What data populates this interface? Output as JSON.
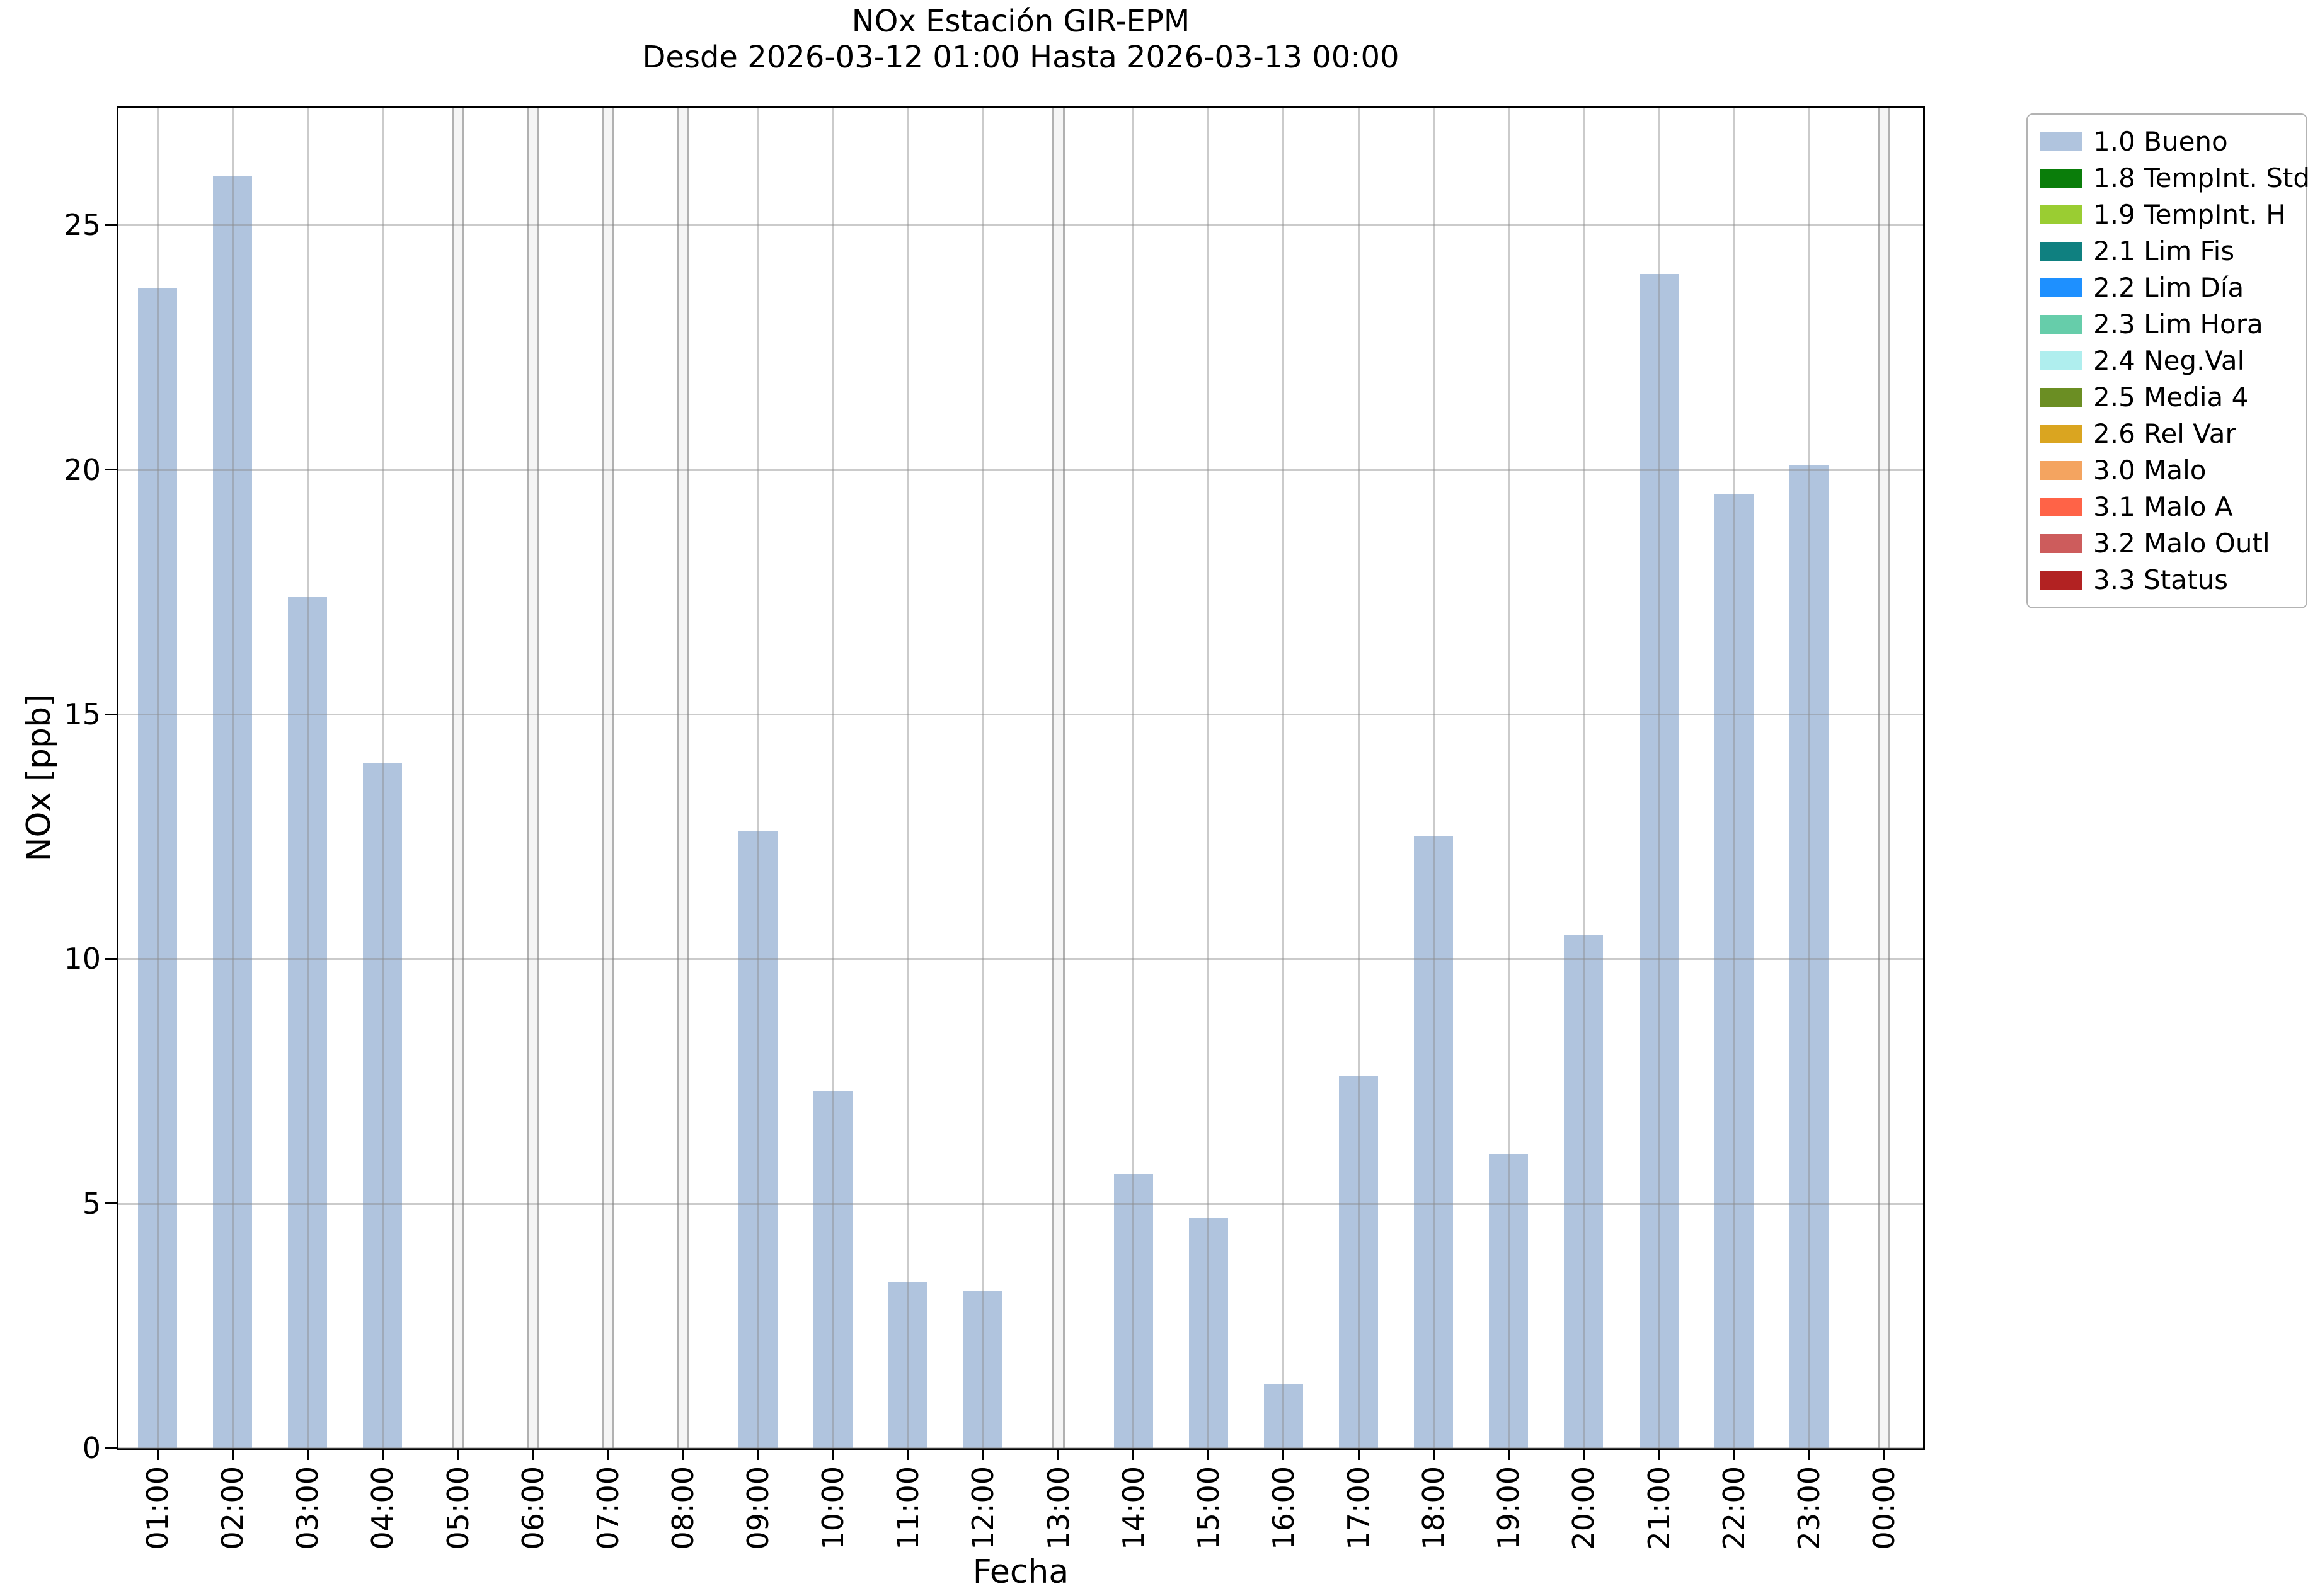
{
  "chart_data": {
    "type": "bar",
    "title": "NOx Estación GIR-EPM",
    "subtitle": "Desde 2026-03-12 01:00 Hasta 2026-03-13 00:00",
    "xlabel": "Fecha",
    "ylabel": "NOx [ppb]",
    "ylim": [
      0,
      27.4
    ],
    "yticks": [
      0,
      5,
      10,
      15,
      20,
      25
    ],
    "grid": true,
    "bar_color": "#b0c4de",
    "legend_position": "upper right outside",
    "categories": [
      "01:00",
      "02:00",
      "03:00",
      "04:00",
      "05:00",
      "06:00",
      "07:00",
      "08:00",
      "09:00",
      "10:00",
      "11:00",
      "12:00",
      "13:00",
      "14:00",
      "15:00",
      "16:00",
      "17:00",
      "18:00",
      "19:00",
      "20:00",
      "21:00",
      "22:00",
      "23:00",
      "00:00"
    ],
    "values": [
      23.7,
      26.0,
      17.4,
      14.0,
      0,
      0,
      0,
      0,
      12.6,
      7.3,
      3.4,
      3.2,
      0,
      5.6,
      4.7,
      1.3,
      7.6,
      12.5,
      6.0,
      10.5,
      24.0,
      19.5,
      20.1,
      0
    ],
    "legend": [
      {
        "label": "1.0 Bueno",
        "color": "#b0c4de"
      },
      {
        "label": "1.8 TempInt. Std",
        "color": "#0a7d0a"
      },
      {
        "label": "1.9 TempInt. H",
        "color": "#9acd32"
      },
      {
        "label": "2.1 Lim Fis",
        "color": "#0f8080"
      },
      {
        "label": "2.2 Lim Día",
        "color": "#1e90ff"
      },
      {
        "label": "2.3 Lim Hora",
        "color": "#66cdaa"
      },
      {
        "label": "2.4 Neg.Val",
        "color": "#afeeee"
      },
      {
        "label": "2.5 Media 4",
        "color": "#6b8e23"
      },
      {
        "label": "2.6 Rel Var",
        "color": "#daa520"
      },
      {
        "label": "3.0 Malo",
        "color": "#f4a460"
      },
      {
        "label": "3.1 Malo A",
        "color": "#ff6347"
      },
      {
        "label": "3.2 Malo Outl",
        "color": "#cd5c5c"
      },
      {
        "label": "3.3 Status",
        "color": "#b22222"
      }
    ]
  }
}
